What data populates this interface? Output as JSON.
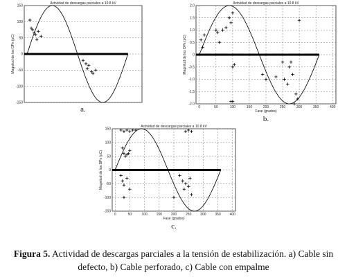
{
  "chart_data": [
    {
      "type": "scatter",
      "title": "Actividad de descargas parciales a 10.8 kV",
      "ylabel": "Magnitud de los DPs (pC)",
      "panel_label": "a.",
      "x": [
        10,
        15,
        20,
        25,
        30,
        35,
        40,
        50,
        200,
        210,
        215,
        220,
        230,
        235,
        245
      ],
      "values": [
        105,
        80,
        75,
        65,
        60,
        45,
        70,
        55,
        -20,
        -30,
        -45,
        -35,
        -55,
        -60,
        -50
      ],
      "xlim": [
        -10,
        410
      ],
      "ylim": [
        -150,
        150
      ],
      "yticks": [
        -150,
        -100,
        -50,
        0,
        50,
        100,
        150
      ],
      "grid": true,
      "color": "#111111"
    },
    {
      "type": "scatter",
      "title": "Actividad de descargas parciales a 10.8 kV",
      "xlabel": "Fase (grados)",
      "ylabel": "Magnitud de los DPs (pC)",
      "panel_label": "b.",
      "x": [
        5,
        10,
        15,
        50,
        55,
        60,
        70,
        80,
        90,
        95,
        100,
        100,
        105,
        95,
        100,
        190,
        200,
        230,
        250,
        255,
        265,
        270,
        280,
        290,
        295,
        285,
        275,
        300
      ],
      "values": [
        0.6,
        0.3,
        0.8,
        1.0,
        0.9,
        0.5,
        1.0,
        1.1,
        1.5,
        1.3,
        1.7,
        -0.5,
        -0.4,
        -1.9,
        -1.9,
        -0.8,
        -1.0,
        -0.9,
        -0.3,
        -1.0,
        -1.2,
        -0.5,
        -0.8,
        -1.6,
        -1.8,
        -2.0,
        -0.3,
        1.4
      ],
      "xlim": [
        -10,
        410
      ],
      "xticks": [
        0,
        50,
        100,
        150,
        200,
        250,
        300,
        350,
        400
      ],
      "ylim": [
        -2,
        2
      ],
      "yticks": [
        {
          "value": -2,
          "label": "-2.0"
        },
        {
          "value": -1.5,
          "label": "-1.5"
        },
        {
          "value": -1,
          "label": "-1.0"
        },
        {
          "value": -0.5,
          "label": "-0.5"
        },
        0,
        {
          "value": 0.5,
          "label": "0.5"
        },
        {
          "value": 1,
          "label": "1.0"
        },
        {
          "value": 1.5,
          "label": "1.5"
        },
        {
          "value": 2,
          "label": "2.0"
        }
      ],
      "grid": true,
      "color": "#111111"
    },
    {
      "type": "scatter",
      "title": "Actividad de descargas parciales a 10.8 kV",
      "xlabel": "Fase (grados)",
      "ylabel": "Magnitud de los DPs (pC)",
      "panel_label": "c.",
      "x": [
        20,
        30,
        40,
        50,
        60,
        70,
        25,
        30,
        35,
        40,
        45,
        50,
        20,
        25,
        30,
        40,
        50,
        30,
        240,
        250,
        260,
        220,
        230,
        235,
        240,
        250,
        255,
        260,
        200
      ],
      "values": [
        145,
        140,
        145,
        140,
        145,
        145,
        80,
        60,
        50,
        55,
        60,
        70,
        -20,
        -40,
        -55,
        -30,
        -70,
        -100,
        140,
        145,
        140,
        -20,
        -40,
        -70,
        -50,
        -60,
        -30,
        -90,
        -100
      ],
      "xlim": [
        -10,
        410
      ],
      "xticks": [
        0,
        50,
        100,
        150,
        200,
        250,
        300,
        350,
        400
      ],
      "ylim": [
        -150,
        150
      ],
      "yticks": [
        -150,
        -100,
        -50,
        0,
        50,
        100,
        150
      ],
      "grid": true,
      "color": "#111111"
    }
  ],
  "caption": {
    "label": "Figura 5.",
    "text": "Actividad de descargas parciales a la tensión de estabilización. a) Cable sin defecto, b) Cable perforado, c) Cable con empalme"
  }
}
